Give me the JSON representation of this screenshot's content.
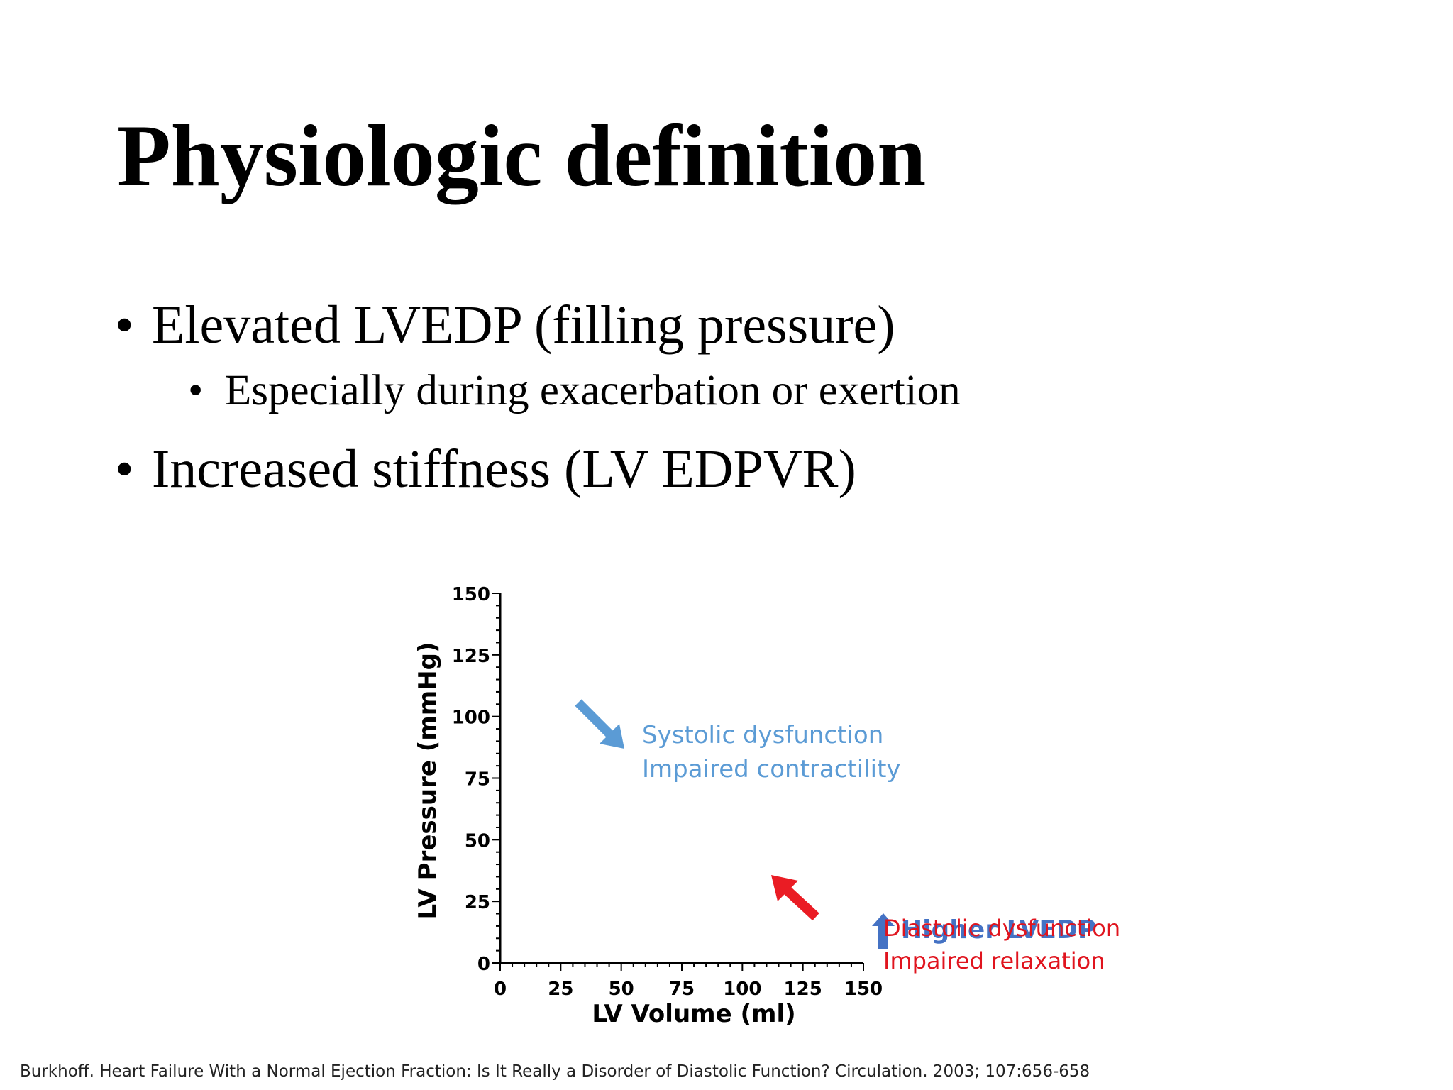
{
  "slide": {
    "title": "Physiologic definition",
    "bullets": [
      {
        "text": "Elevated LVEDP (filling pressure)",
        "level": 1
      },
      {
        "text": "Especially during exacerbation or exertion",
        "level": 2
      },
      {
        "text": "Increased stiffness (LV EDPVR)",
        "level": 1
      }
    ],
    "bullet_glyph": "•",
    "citation": "Burkhoff. Heart Failure With a Normal Ejection Fraction: Is It Really a Disorder of Diastolic Function? Circulation. 2003; 107:656-658"
  },
  "annotations": {
    "systolic": {
      "line1": "Systolic dysfunction",
      "line2": "Impaired contractility",
      "color": "#5b9bd5",
      "arrow": "down-right-arrow"
    },
    "diastolic": {
      "line1": "Diastolic dysfunction",
      "line2": "Impaired relaxation",
      "color": "#e0141e",
      "arrow": "up-left-arrow"
    },
    "lvedp": {
      "label": "Higher LVEDP",
      "color": "#4472c4",
      "arrow": "up-arrow"
    }
  },
  "chart_data": {
    "type": "line",
    "xlabel": "LV Volume (ml)",
    "ylabel": "LV Pressure (mmHg)",
    "xlim": [
      0,
      150
    ],
    "ylim": [
      0,
      150
    ],
    "xticks": [
      "0",
      "25",
      "50",
      "75",
      "100",
      "125",
      "150"
    ],
    "yticks": [
      "0",
      "25",
      "50",
      "75",
      "100",
      "125",
      "150"
    ],
    "series": [
      {
        "x": [
          0,
          25,
          50,
          75,
          100,
          125
        ],
        "y": [
          0,
          0,
          0,
          0,
          0,
          0
        ]
      }
    ],
    "grid": false,
    "legend": "none"
  }
}
